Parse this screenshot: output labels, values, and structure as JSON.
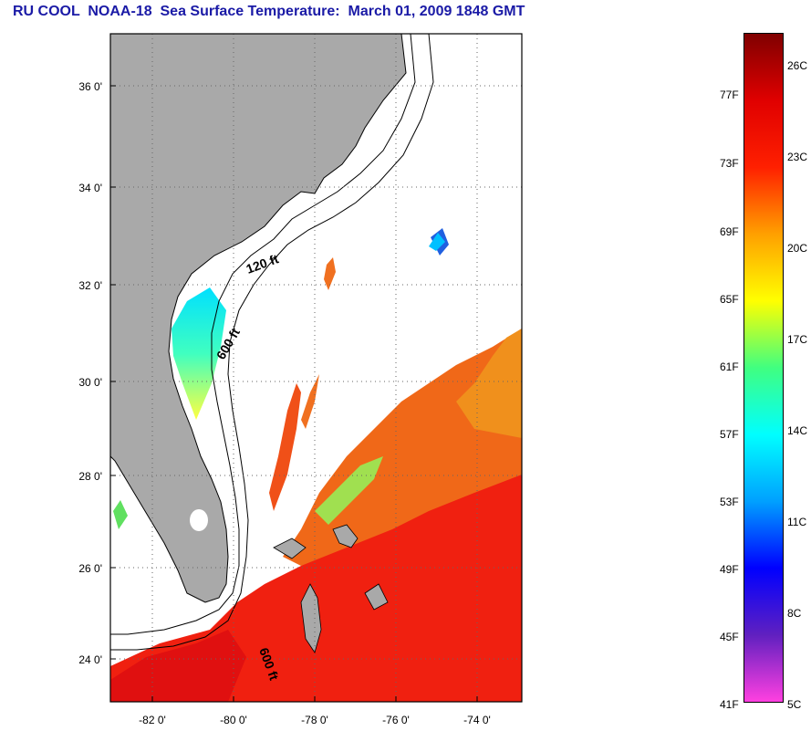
{
  "title": "RU COOL  NOAA-18  Sea Surface Temperature:  March 01, 2009 1848 GMT",
  "map": {
    "latitude_ticks": [
      "24 0'",
      "26 0'",
      "28 0'",
      "30 0'",
      "32 0'",
      "34 0'",
      "36 0'"
    ],
    "longitude_ticks": [
      "-82 0'",
      "-80 0'",
      "-78 0'",
      "-76 0'",
      "-74 0'"
    ],
    "isobath_labels": [
      "120 ft",
      "600 ft",
      "600 ft"
    ],
    "land_color": "#a9a9a9",
    "grid": "dotted"
  },
  "colorbar": {
    "fahrenheit_labels": [
      "77F",
      "73F",
      "69F",
      "65F",
      "61F",
      "57F",
      "53F",
      "49F",
      "45F",
      "41F"
    ],
    "celsius_labels": [
      "26C",
      "23C",
      "20C",
      "17C",
      "14C",
      "11C",
      "8C",
      "5C"
    ],
    "palette": [
      "#ff40e0",
      "#6020c0",
      "#0000ff",
      "#00a0ff",
      "#00ffff",
      "#40ff80",
      "#ffff00",
      "#ffa000",
      "#ff2000",
      "#e00000",
      "#800000"
    ]
  }
}
